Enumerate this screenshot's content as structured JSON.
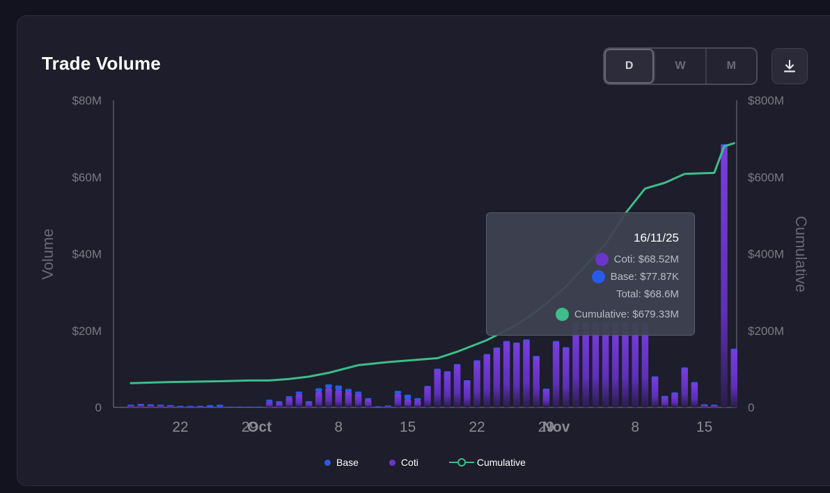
{
  "header": {
    "title": "Trade Volume",
    "range_buttons": [
      {
        "label": "D",
        "active": true
      },
      {
        "label": "W",
        "active": false
      },
      {
        "label": "M",
        "active": false
      }
    ],
    "download_icon": "download-icon"
  },
  "chart_data": {
    "type": "bar",
    "title": "Trade Volume",
    "ylabel": "Volume",
    "y2label": "Cumulative",
    "ylim": [
      0,
      80
    ],
    "y2lim": [
      0,
      800
    ],
    "y_ticks": [
      "0",
      "$20M",
      "$40M",
      "$60M",
      "$80M"
    ],
    "y2_ticks": [
      "0",
      "$200M",
      "$400M",
      "$600M",
      "$800M"
    ],
    "x_ticks": [
      {
        "label": "22",
        "month": false
      },
      {
        "label": "29",
        "month": false
      },
      {
        "label": "Oct",
        "month": true
      },
      {
        "label": "8",
        "month": false
      },
      {
        "label": "15",
        "month": false
      },
      {
        "label": "22",
        "month": false
      },
      {
        "label": "29",
        "month": false
      },
      {
        "label": "Nov",
        "month": true
      },
      {
        "label": "8",
        "month": false
      },
      {
        "label": "15",
        "month": false
      }
    ],
    "x_tick_days": [
      5,
      12,
      13,
      21,
      28,
      35,
      42,
      43,
      51,
      58
    ],
    "stacked": true,
    "series": [
      {
        "name": "Coti",
        "color": "#6b35c9",
        "values": [
          0.6,
          0.8,
          0.7,
          0.6,
          0.5,
          0.3,
          0.2,
          0.2,
          0.1,
          0.1,
          0.1,
          0.1,
          0.1,
          0.1,
          1.5,
          1.3,
          2.5,
          3.5,
          1.4,
          4.0,
          5.0,
          4.5,
          4.0,
          3.5,
          2.0,
          0.2,
          0.3,
          3.5,
          2.0,
          1.8,
          5.5,
          10.0,
          9.3,
          11.2,
          7.0,
          12.2,
          13.8,
          15.5,
          17.2,
          16.8,
          17.6,
          13.3,
          4.8,
          17.2,
          15.6,
          22.0,
          22.0,
          22.0,
          22.0,
          22.0,
          22.0,
          22.0,
          22.0,
          8.0,
          2.9,
          3.8,
          10.3,
          6.5,
          0.7,
          0.6,
          68.52,
          15.2
        ],
        "visible_from": 0
      },
      {
        "name": "Base",
        "color": "#2a5ae8",
        "values": [
          0.1,
          0.1,
          0.1,
          0.1,
          0.1,
          0.1,
          0.2,
          0.2,
          0.5,
          0.6,
          0.1,
          0.1,
          0.1,
          0.1,
          0.5,
          0.3,
          0.4,
          0.6,
          0.2,
          1.0,
          1.0,
          1.2,
          0.8,
          0.6,
          0.4,
          0.1,
          0.2,
          0.8,
          1.3,
          0.6,
          0.1,
          0.1,
          0.1,
          0.1,
          0.1,
          0.1,
          0.1,
          0.1,
          0.1,
          0.1,
          0.1,
          0.1,
          0.1,
          0.1,
          0.1,
          0.1,
          0.1,
          0.1,
          0.1,
          0.1,
          0.1,
          0.1,
          0.1,
          0.1,
          0.1,
          0.1,
          0.1,
          0.1,
          0.1,
          0.1,
          0.0779,
          0.1
        ]
      },
      {
        "name": "Cumulative",
        "color": "#3dbd8a",
        "axis": "right",
        "days": [
          0,
          4,
          9,
          12,
          14,
          16,
          18,
          20,
          23,
          26,
          28,
          31,
          33,
          36,
          39,
          41,
          42,
          44,
          46,
          48,
          49,
          50,
          52,
          54,
          56,
          59,
          60,
          61
        ],
        "values": [
          63,
          66,
          68,
          70,
          70,
          74,
          80,
          90,
          110,
          118,
          122,
          128,
          145,
          175,
          215,
          250,
          270,
          315,
          370,
          425,
          465,
          505,
          570,
          585,
          608,
          611,
          680,
          688
        ]
      }
    ]
  },
  "tooltip": {
    "date": "16/11/25",
    "coti": "Coti: $68.52M",
    "base": "Base: $77.87K",
    "total": "Total: $68.6M",
    "cumulative": "Cumulative: $679.33M"
  },
  "legend": {
    "items": [
      {
        "label": "Base",
        "color": "#2a5ae8",
        "kind": "dot"
      },
      {
        "label": "Coti",
        "color": "#6b35c9",
        "kind": "dot"
      },
      {
        "label": "Cumulative",
        "color": "#3dbd8a",
        "kind": "line"
      }
    ]
  }
}
